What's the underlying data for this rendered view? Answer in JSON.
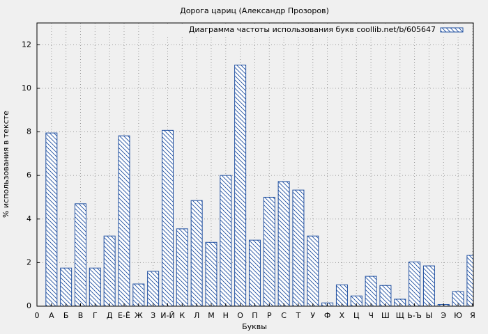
{
  "chart_data": {
    "type": "bar",
    "title": "Дорога цариц (Александр Прозоров)",
    "x_label": "Буквы",
    "y_label": "% использования в тексте",
    "categories": [
      "0",
      "А",
      "Б",
      "В",
      "Г",
      "Д",
      "Е-Ё",
      "Ж",
      "З",
      "И-Й",
      "К",
      "Л",
      "М",
      "Н",
      "О",
      "П",
      "Р",
      "С",
      "Т",
      "У",
      "Ф",
      "Х",
      "Ц",
      "Ч",
      "Ш",
      "Щ",
      "Ь-Ъ",
      "Ы",
      "Э",
      "Ю",
      "Я"
    ],
    "series": [
      {
        "name": "Диаграмма частоты использования букв coollib.net/b/605647",
        "color": "#1f4fa0",
        "values": [
          null,
          7.95,
          1.75,
          4.7,
          1.75,
          3.22,
          7.82,
          1.02,
          1.6,
          8.07,
          3.55,
          4.85,
          2.93,
          6.0,
          11.07,
          3.03,
          5.0,
          5.72,
          5.33,
          3.22,
          0.15,
          0.98,
          0.47,
          1.37,
          0.95,
          0.32,
          2.03,
          1.85,
          0.08,
          0.67,
          2.33
        ]
      }
    ],
    "ylim": [
      0,
      13
    ],
    "yticks": [
      0,
      2,
      4,
      6,
      8,
      10,
      12
    ],
    "grid": true,
    "legend": "upper right"
  }
}
